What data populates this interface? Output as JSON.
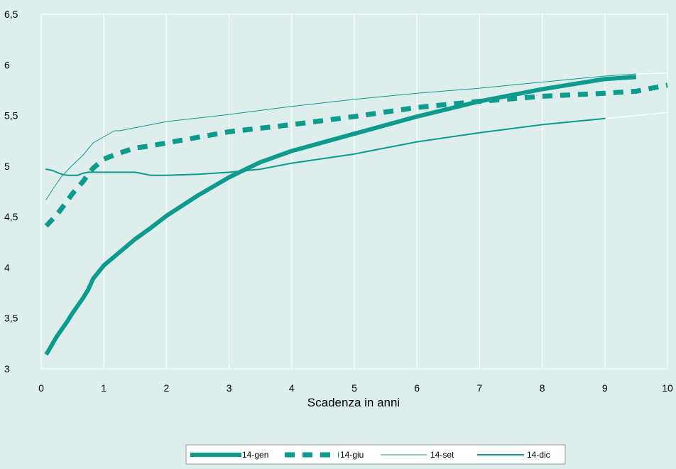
{
  "chart_data": {
    "type": "line",
    "title": "",
    "xlabel": "Scadenza in anni",
    "ylabel": "",
    "xlim": [
      0,
      10
    ],
    "ylim": [
      3,
      6.5
    ],
    "x_ticks": [
      "0",
      "1",
      "2",
      "3",
      "4",
      "5",
      "6",
      "7",
      "8",
      "9",
      "10"
    ],
    "y_ticks": [
      "3",
      "3,5",
      "4",
      "4,5",
      "5",
      "5,5",
      "6",
      "6,5"
    ],
    "grid": "vertical",
    "legend_position": "bottom",
    "colors": {
      "background": "#ddeeed",
      "series": "#0e9a8c",
      "grid": "#ffffff"
    },
    "series": [
      {
        "name": "14-gen",
        "style": "thick-solid",
        "points": [
          [
            0.08,
            3.14
          ],
          [
            0.25,
            3.32
          ],
          [
            0.42,
            3.47
          ],
          [
            0.5,
            3.55
          ],
          [
            0.67,
            3.7
          ],
          [
            0.75,
            3.78
          ],
          [
            0.83,
            3.89
          ],
          [
            1,
            4.02
          ],
          [
            1.25,
            4.15
          ],
          [
            1.5,
            4.28
          ],
          [
            1.75,
            4.39
          ],
          [
            2,
            4.51
          ],
          [
            2.5,
            4.71
          ],
          [
            3,
            4.89
          ],
          [
            3.5,
            5.04
          ],
          [
            4,
            5.15
          ],
          [
            5,
            5.32
          ],
          [
            6,
            5.49
          ],
          [
            7,
            5.64
          ],
          [
            8,
            5.76
          ],
          [
            9,
            5.86
          ],
          [
            9.5,
            5.88
          ]
        ]
      },
      {
        "name": "14-giu",
        "style": "thick-dashed",
        "points": [
          [
            0.08,
            4.41
          ],
          [
            0.25,
            4.52
          ],
          [
            0.42,
            4.66
          ],
          [
            0.5,
            4.73
          ],
          [
            0.67,
            4.85
          ],
          [
            0.75,
            4.92
          ],
          [
            0.83,
            4.98
          ],
          [
            1,
            5.07
          ],
          [
            1.25,
            5.13
          ],
          [
            1.5,
            5.18
          ],
          [
            1.75,
            5.2
          ],
          [
            2,
            5.23
          ],
          [
            3,
            5.34
          ],
          [
            4,
            5.41
          ],
          [
            5,
            5.49
          ],
          [
            6,
            5.58
          ],
          [
            7,
            5.64
          ],
          [
            8,
            5.69
          ],
          [
            9,
            5.72
          ],
          [
            9.5,
            5.74
          ],
          [
            10,
            5.8
          ]
        ]
      },
      {
        "name": "14-set",
        "style": "thin",
        "points": [
          [
            0.08,
            4.67
          ],
          [
            0.17,
            4.76
          ],
          [
            0.25,
            4.83
          ],
          [
            0.33,
            4.9
          ],
          [
            0.42,
            4.96
          ],
          [
            0.5,
            5.01
          ],
          [
            0.67,
            5.11
          ],
          [
            0.75,
            5.17
          ],
          [
            0.83,
            5.23
          ],
          [
            1,
            5.29
          ],
          [
            1.17,
            5.35
          ],
          [
            1.25,
            5.35
          ],
          [
            1.5,
            5.38
          ],
          [
            2,
            5.44
          ],
          [
            3,
            5.51
          ],
          [
            4,
            5.59
          ],
          [
            5,
            5.66
          ],
          [
            6,
            5.72
          ],
          [
            7,
            5.77
          ],
          [
            8,
            5.83
          ],
          [
            9,
            5.89
          ],
          [
            9.5,
            5.91
          ]
        ]
      },
      {
        "name": "14-dic",
        "style": "medium",
        "points": [
          [
            0.08,
            4.97
          ],
          [
            0.17,
            4.96
          ],
          [
            0.25,
            4.94
          ],
          [
            0.33,
            4.92
          ],
          [
            0.42,
            4.91
          ],
          [
            0.5,
            4.91
          ],
          [
            0.58,
            4.91
          ],
          [
            0.67,
            4.93
          ],
          [
            0.75,
            4.94
          ],
          [
            1,
            4.94
          ],
          [
            1.5,
            4.94
          ],
          [
            1.75,
            4.91
          ],
          [
            2,
            4.91
          ],
          [
            2.5,
            4.92
          ],
          [
            3,
            4.94
          ],
          [
            3.5,
            4.97
          ],
          [
            4,
            5.03
          ],
          [
            5,
            5.12
          ],
          [
            6,
            5.24
          ],
          [
            7,
            5.33
          ],
          [
            8,
            5.41
          ],
          [
            9,
            5.47
          ]
        ]
      }
    ]
  }
}
